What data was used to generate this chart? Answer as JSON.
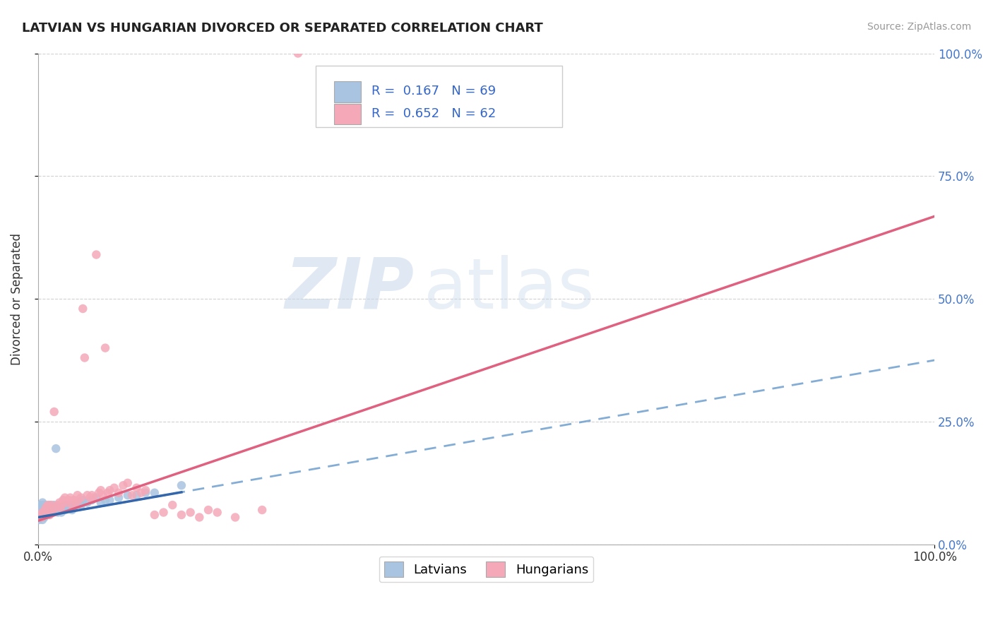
{
  "title": "LATVIAN VS HUNGARIAN DIVORCED OR SEPARATED CORRELATION CHART",
  "source_text": "Source: ZipAtlas.com",
  "ylabel": "Divorced or Separated",
  "latvian_color": "#a8c4e0",
  "hungarian_color": "#f4a8b8",
  "latvian_line_color": "#6699cc",
  "hungarian_line_color": "#e06080",
  "R_latvian": 0.167,
  "N_latvian": 69,
  "R_hungarian": 0.652,
  "N_hungarian": 62,
  "legend_label_latvians": "Latvians",
  "legend_label_hungarians": "Hungarians",
  "watermark_zip": "ZIP",
  "watermark_atlas": "atlas",
  "background_color": "#ffffff",
  "grid_color": "#cccccc",
  "xlim": [
    0.0,
    1.0
  ],
  "ylim": [
    0.0,
    1.0
  ],
  "latvian_scatter": [
    [
      0.001,
      0.05
    ],
    [
      0.002,
      0.055
    ],
    [
      0.002,
      0.07
    ],
    [
      0.003,
      0.06
    ],
    [
      0.003,
      0.08
    ],
    [
      0.003,
      0.065
    ],
    [
      0.004,
      0.055
    ],
    [
      0.004,
      0.075
    ],
    [
      0.004,
      0.06
    ],
    [
      0.005,
      0.05
    ],
    [
      0.005,
      0.065
    ],
    [
      0.005,
      0.085
    ],
    [
      0.005,
      0.07
    ],
    [
      0.006,
      0.06
    ],
    [
      0.006,
      0.07
    ],
    [
      0.006,
      0.08
    ],
    [
      0.007,
      0.055
    ],
    [
      0.007,
      0.075
    ],
    [
      0.007,
      0.065
    ],
    [
      0.008,
      0.06
    ],
    [
      0.008,
      0.07
    ],
    [
      0.008,
      0.08
    ],
    [
      0.009,
      0.065
    ],
    [
      0.009,
      0.075
    ],
    [
      0.01,
      0.06
    ],
    [
      0.01,
      0.07
    ],
    [
      0.011,
      0.065
    ],
    [
      0.011,
      0.075
    ],
    [
      0.012,
      0.06
    ],
    [
      0.012,
      0.07
    ],
    [
      0.013,
      0.065
    ],
    [
      0.013,
      0.08
    ],
    [
      0.014,
      0.07
    ],
    [
      0.015,
      0.065
    ],
    [
      0.015,
      0.075
    ],
    [
      0.016,
      0.07
    ],
    [
      0.017,
      0.065
    ],
    [
      0.018,
      0.07
    ],
    [
      0.018,
      0.08
    ],
    [
      0.019,
      0.075
    ],
    [
      0.02,
      0.195
    ],
    [
      0.021,
      0.07
    ],
    [
      0.022,
      0.065
    ],
    [
      0.023,
      0.075
    ],
    [
      0.025,
      0.07
    ],
    [
      0.026,
      0.065
    ],
    [
      0.028,
      0.075
    ],
    [
      0.03,
      0.07
    ],
    [
      0.032,
      0.08
    ],
    [
      0.034,
      0.075
    ],
    [
      0.036,
      0.08
    ],
    [
      0.038,
      0.07
    ],
    [
      0.04,
      0.075
    ],
    [
      0.042,
      0.08
    ],
    [
      0.045,
      0.085
    ],
    [
      0.048,
      0.08
    ],
    [
      0.05,
      0.09
    ],
    [
      0.055,
      0.085
    ],
    [
      0.06,
      0.09
    ],
    [
      0.065,
      0.095
    ],
    [
      0.07,
      0.085
    ],
    [
      0.075,
      0.09
    ],
    [
      0.08,
      0.09
    ],
    [
      0.09,
      0.095
    ],
    [
      0.1,
      0.1
    ],
    [
      0.11,
      0.1
    ],
    [
      0.12,
      0.105
    ],
    [
      0.13,
      0.105
    ],
    [
      0.16,
      0.12
    ]
  ],
  "hungarian_scatter": [
    [
      0.003,
      0.06
    ],
    [
      0.004,
      0.055
    ],
    [
      0.005,
      0.065
    ],
    [
      0.006,
      0.06
    ],
    [
      0.008,
      0.07
    ],
    [
      0.009,
      0.075
    ],
    [
      0.01,
      0.065
    ],
    [
      0.011,
      0.08
    ],
    [
      0.012,
      0.075
    ],
    [
      0.013,
      0.06
    ],
    [
      0.014,
      0.07
    ],
    [
      0.015,
      0.08
    ],
    [
      0.016,
      0.065
    ],
    [
      0.018,
      0.27
    ],
    [
      0.02,
      0.075
    ],
    [
      0.022,
      0.08
    ],
    [
      0.024,
      0.085
    ],
    [
      0.025,
      0.075
    ],
    [
      0.026,
      0.08
    ],
    [
      0.028,
      0.09
    ],
    [
      0.03,
      0.095
    ],
    [
      0.032,
      0.085
    ],
    [
      0.034,
      0.09
    ],
    [
      0.036,
      0.095
    ],
    [
      0.038,
      0.08
    ],
    [
      0.04,
      0.09
    ],
    [
      0.042,
      0.085
    ],
    [
      0.044,
      0.1
    ],
    [
      0.045,
      0.09
    ],
    [
      0.048,
      0.095
    ],
    [
      0.05,
      0.48
    ],
    [
      0.052,
      0.38
    ],
    [
      0.055,
      0.1
    ],
    [
      0.058,
      0.095
    ],
    [
      0.06,
      0.1
    ],
    [
      0.062,
      0.095
    ],
    [
      0.065,
      0.59
    ],
    [
      0.068,
      0.105
    ],
    [
      0.07,
      0.11
    ],
    [
      0.072,
      0.1
    ],
    [
      0.075,
      0.4
    ],
    [
      0.078,
      0.105
    ],
    [
      0.08,
      0.11
    ],
    [
      0.085,
      0.115
    ],
    [
      0.09,
      0.105
    ],
    [
      0.095,
      0.12
    ],
    [
      0.1,
      0.125
    ],
    [
      0.105,
      0.1
    ],
    [
      0.11,
      0.115
    ],
    [
      0.115,
      0.105
    ],
    [
      0.12,
      0.11
    ],
    [
      0.13,
      0.06
    ],
    [
      0.14,
      0.065
    ],
    [
      0.15,
      0.08
    ],
    [
      0.16,
      0.06
    ],
    [
      0.17,
      0.065
    ],
    [
      0.18,
      0.055
    ],
    [
      0.19,
      0.07
    ],
    [
      0.2,
      0.065
    ],
    [
      0.22,
      0.055
    ],
    [
      0.25,
      0.07
    ],
    [
      0.29,
      1.0
    ]
  ]
}
